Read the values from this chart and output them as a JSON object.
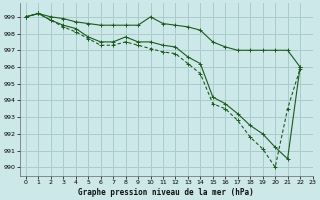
{
  "title": "Graphe pression niveau de la mer (hPa)",
  "bg_color": "#cce8e8",
  "grid_color": "#aacccc",
  "line_color": "#1a5c1a",
  "xlim": [
    -0.5,
    23
  ],
  "ylim": [
    989.5,
    999.8
  ],
  "yticks": [
    990,
    991,
    992,
    993,
    994,
    995,
    996,
    997,
    998,
    999
  ],
  "xticks": [
    0,
    1,
    2,
    3,
    4,
    5,
    6,
    7,
    8,
    9,
    10,
    11,
    12,
    13,
    14,
    15,
    16,
    17,
    18,
    19,
    20,
    21,
    22,
    23
  ],
  "series1_x": [
    0,
    1,
    2,
    3,
    4,
    5,
    6,
    7,
    8,
    9,
    10,
    11,
    12,
    13,
    14,
    15,
    16,
    17,
    18,
    19,
    20,
    21,
    22
  ],
  "series1_y": [
    999.0,
    999.2,
    999.0,
    998.9,
    998.7,
    998.6,
    998.5,
    998.5,
    998.5,
    998.5,
    999.0,
    998.6,
    998.5,
    998.4,
    998.2,
    997.5,
    997.2,
    997.0,
    997.0,
    997.0,
    997.0,
    997.0,
    996.0
  ],
  "series2_x": [
    0,
    1,
    2,
    3,
    4,
    5,
    6,
    7,
    8,
    9,
    10,
    11,
    12,
    13,
    14,
    15,
    16,
    17,
    18,
    19,
    20,
    21,
    22
  ],
  "series2_y": [
    999.0,
    999.2,
    998.8,
    998.5,
    998.3,
    997.8,
    997.5,
    997.5,
    997.8,
    997.5,
    997.5,
    997.3,
    997.2,
    996.6,
    996.2,
    994.2,
    993.8,
    993.2,
    992.5,
    992.0,
    991.2,
    990.5,
    996.0
  ],
  "series3_x": [
    0,
    1,
    2,
    3,
    4,
    5,
    6,
    7,
    8,
    9,
    10,
    11,
    12,
    13,
    14,
    15,
    16,
    17,
    18,
    19,
    20,
    21,
    22
  ],
  "series3_y": [
    999.0,
    999.2,
    998.8,
    998.4,
    998.1,
    997.7,
    997.3,
    997.3,
    997.5,
    997.3,
    997.1,
    996.9,
    996.8,
    996.2,
    995.6,
    993.8,
    993.5,
    992.8,
    991.8,
    991.1,
    990.0,
    993.5,
    995.9
  ]
}
